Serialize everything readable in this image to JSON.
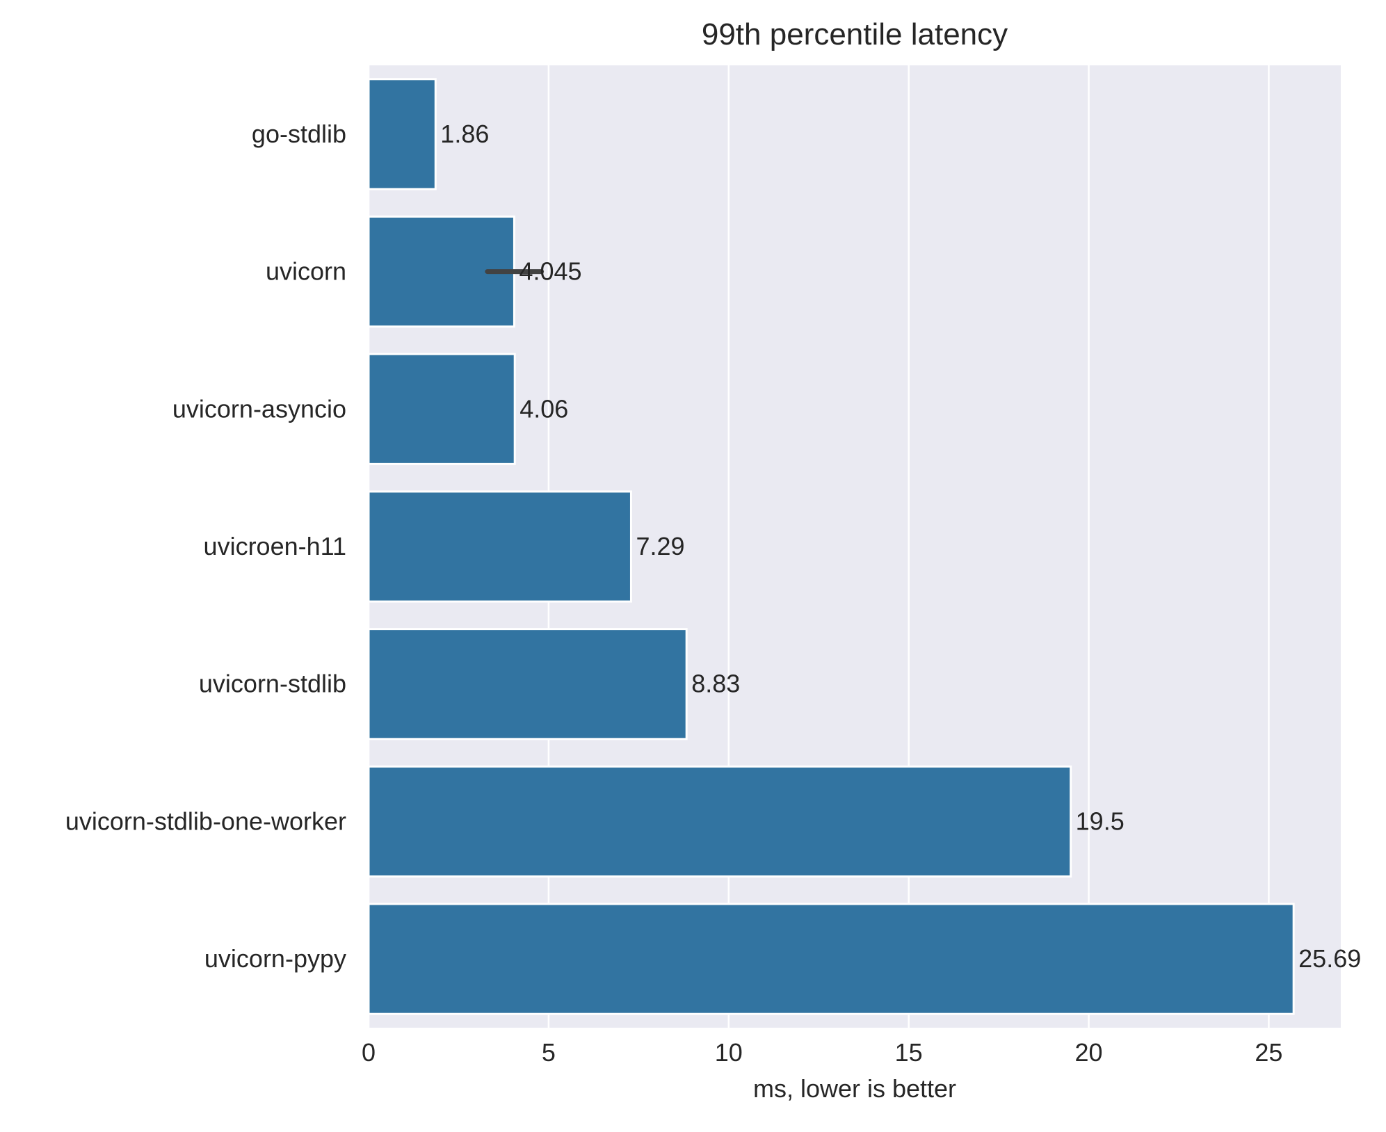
{
  "chart_data": {
    "type": "bar",
    "orientation": "horizontal",
    "title": "99th percentile latency",
    "xlabel": "ms, lower is better",
    "ylabel": "",
    "xlim": [
      0,
      27
    ],
    "xticks": [
      0,
      5,
      10,
      15,
      20,
      25
    ],
    "grid": true,
    "categories": [
      "go-stdlib",
      "uvicorn",
      "uvicorn-asyncio",
      "uvicroen-h11",
      "uvicorn-stdlib",
      "uvicorn-stdlib-one-worker",
      "uvicorn-pypy"
    ],
    "values": [
      1.86,
      4.045,
      4.06,
      7.29,
      8.83,
      19.5,
      25.69
    ],
    "value_labels": [
      "1.86",
      "4.045",
      "4.06",
      "7.29",
      "8.83",
      "19.5",
      "25.69"
    ],
    "error_bars": [
      null,
      [
        3.3,
        4.8
      ],
      null,
      null,
      null,
      null,
      null
    ],
    "colors": {
      "bar": "#3274a1",
      "background": "#eaeaf2",
      "grid": "#ffffff",
      "error_bar": "#424242"
    }
  }
}
